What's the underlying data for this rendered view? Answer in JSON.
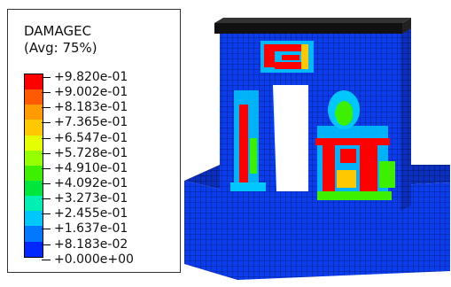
{
  "legend": {
    "title": "DAMAGEC",
    "subtitle": "(Avg: 75%)",
    "bands": [
      {
        "color": "#ff0000"
      },
      {
        "color": "#ff5a00"
      },
      {
        "color": "#ff9a00"
      },
      {
        "color": "#ffc800"
      },
      {
        "color": "#e6ff00"
      },
      {
        "color": "#96ff00"
      },
      {
        "color": "#3cf000"
      },
      {
        "color": "#00e63c"
      },
      {
        "color": "#00f0b4"
      },
      {
        "color": "#00c8ff"
      },
      {
        "color": "#0078ff"
      },
      {
        "color": "#0028ff"
      }
    ],
    "values": [
      "+9.820e-01",
      "+9.002e-01",
      "+8.183e-01",
      "+7.365e-01",
      "+6.547e-01",
      "+5.728e-01",
      "+4.910e-01",
      "+4.092e-01",
      "+3.273e-01",
      "+2.455e-01",
      "+1.637e-01",
      "+8.183e-02",
      "+0.000e+00"
    ]
  },
  "colors": {
    "base_blue": "#0b3df0",
    "mesh_line": "#001a80",
    "cap_black": "#111111",
    "damage_red": "#ff0000",
    "damage_green": "#3cf000",
    "damage_cyan": "#00c8ff"
  }
}
